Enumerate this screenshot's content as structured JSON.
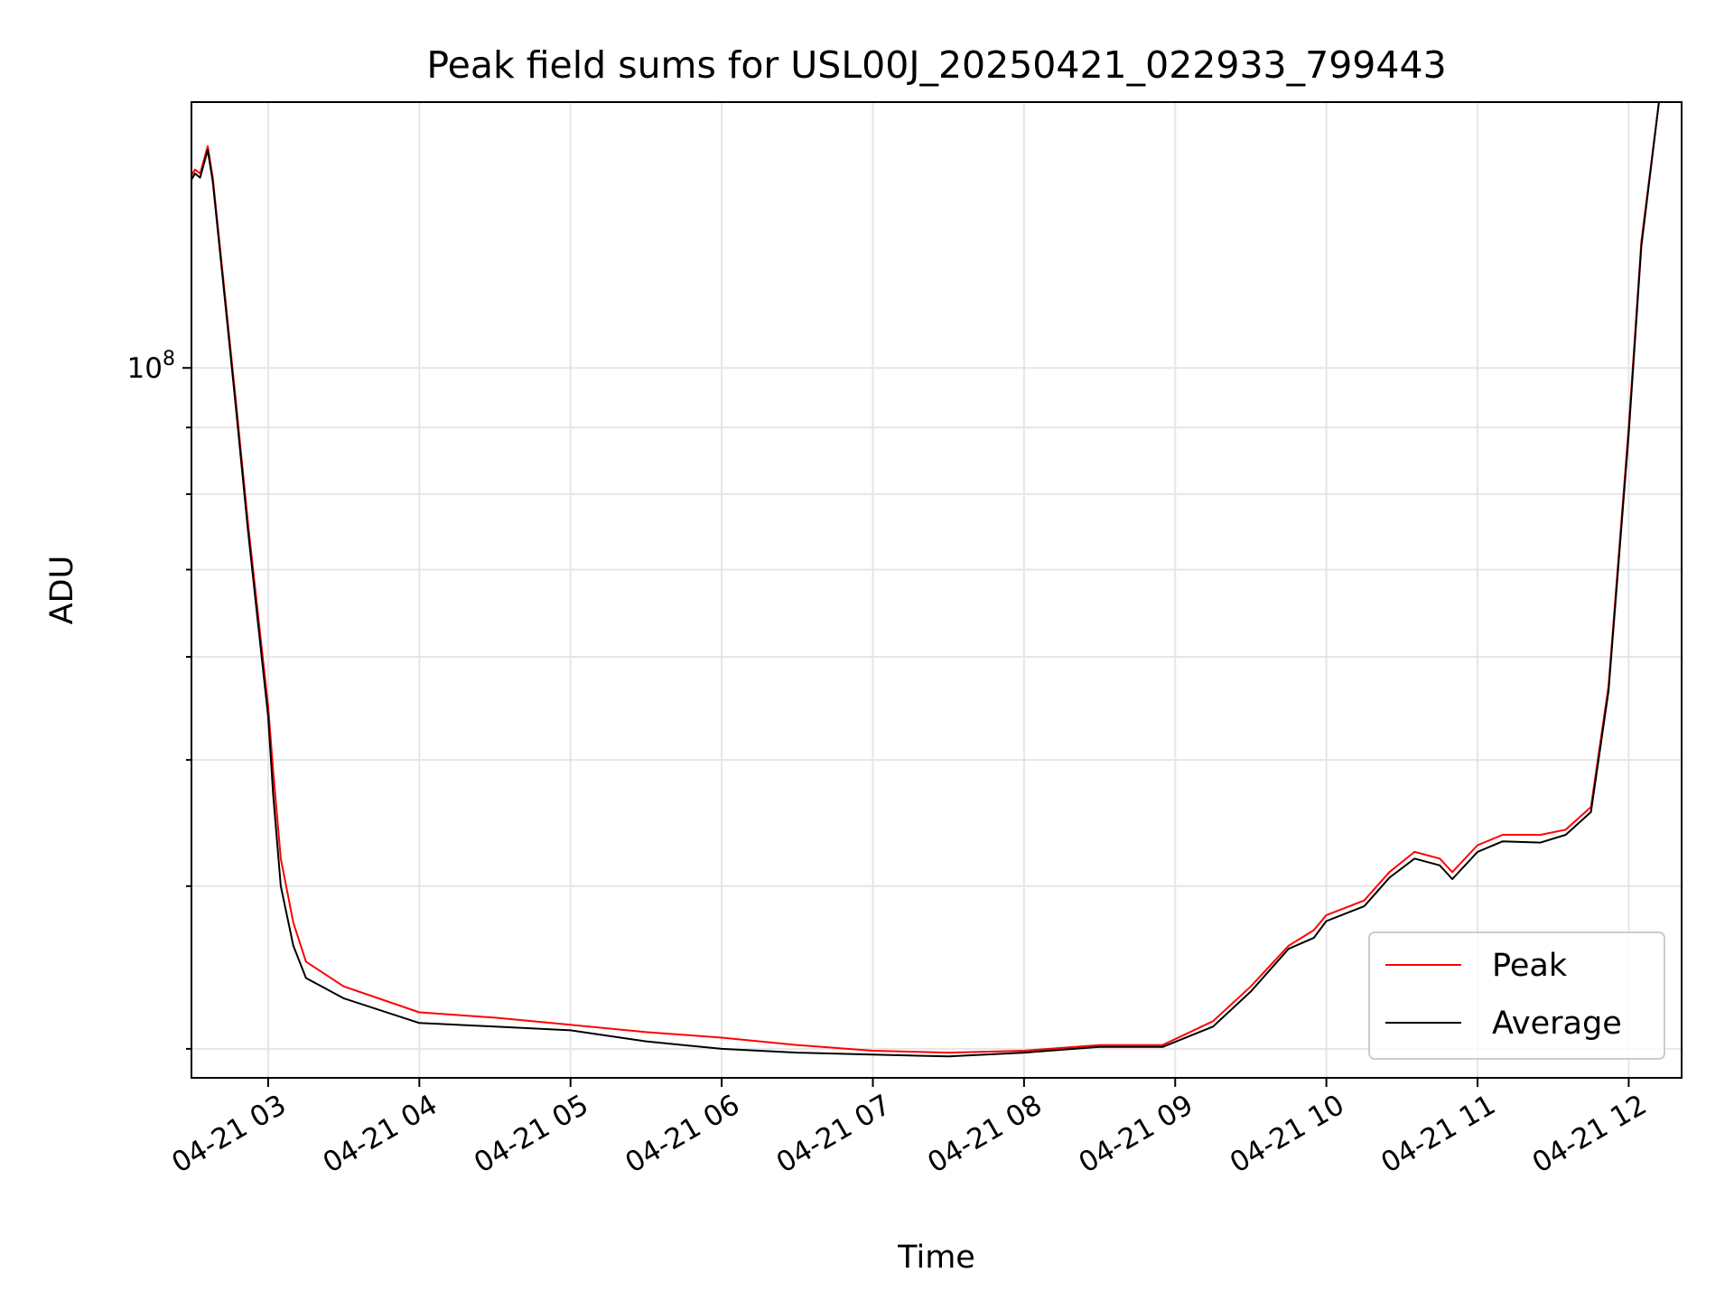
{
  "chart_data": {
    "type": "line",
    "title": "Peak field sums for USL00J_20250421_022933_799443",
    "xlabel": "Time",
    "ylabel": "ADU",
    "y_scale": "log",
    "y_tick_labels": [
      {
        "base": "10",
        "exp": "8",
        "value": 100000000
      }
    ],
    "ylim": [
      28500000,
      160000000
    ],
    "xlim": [
      "2025-04-21 02:29:33",
      "2025-04-21 12:21:00"
    ],
    "x_ticks": [
      "2025-04-21 03:00",
      "2025-04-21 04:00",
      "2025-04-21 05:00",
      "2025-04-21 06:00",
      "2025-04-21 07:00",
      "2025-04-21 08:00",
      "2025-04-21 09:00",
      "2025-04-21 10:00",
      "2025-04-21 11:00",
      "2025-04-21 12:00"
    ],
    "x_tick_labels": [
      "04-21 03",
      "04-21 04",
      "04-21 05",
      "04-21 06",
      "04-21 07",
      "04-21 08",
      "04-21 09",
      "04-21 10",
      "04-21 11",
      "04-21 12"
    ],
    "grid": true,
    "legend": {
      "position": "lower-right"
    },
    "series": [
      {
        "name": "Peak",
        "color": "#ff0000",
        "x": [
          "2025-04-21 02:29",
          "2025-04-21 02:31",
          "2025-04-21 02:33",
          "2025-04-21 02:36",
          "2025-04-21 02:38",
          "2025-04-21 02:42",
          "2025-04-21 02:47",
          "2025-04-21 02:52",
          "2025-04-21 02:57",
          "2025-04-21 03:00",
          "2025-04-21 03:02",
          "2025-04-21 03:05",
          "2025-04-21 03:10",
          "2025-04-21 03:15",
          "2025-04-21 03:30",
          "2025-04-21 04:00",
          "2025-04-21 04:30",
          "2025-04-21 05:00",
          "2025-04-21 05:30",
          "2025-04-21 06:00",
          "2025-04-21 06:30",
          "2025-04-21 07:00",
          "2025-04-21 07:30",
          "2025-04-21 08:00",
          "2025-04-21 08:30",
          "2025-04-21 08:55",
          "2025-04-21 09:15",
          "2025-04-21 09:30",
          "2025-04-21 09:45",
          "2025-04-21 09:55",
          "2025-04-21 10:00",
          "2025-04-21 10:15",
          "2025-04-21 10:25",
          "2025-04-21 10:35",
          "2025-04-21 10:45",
          "2025-04-21 10:50",
          "2025-04-21 11:00",
          "2025-04-21 11:10",
          "2025-04-21 11:25",
          "2025-04-21 11:35",
          "2025-04-21 11:45",
          "2025-04-21 11:52",
          "2025-04-21 12:00",
          "2025-04-21 12:05",
          "2025-04-21 12:12"
        ],
        "values": [
          140000000,
          142000000,
          141000000,
          148000000,
          140000000,
          118000000,
          95000000,
          76000000,
          62000000,
          55000000,
          49000000,
          42000000,
          37500000,
          35000000,
          33500000,
          32000000,
          31700000,
          31300000,
          30900000,
          30600000,
          30200000,
          29900000,
          29800000,
          29900000,
          30200000,
          30200000,
          31500000,
          33500000,
          36000000,
          37000000,
          38000000,
          39000000,
          41000000,
          42500000,
          42000000,
          41000000,
          43000000,
          43800000,
          43800000,
          44200000,
          46000000,
          57000000,
          90000000,
          125000000,
          160000000
        ]
      },
      {
        "name": "Average",
        "color": "#000000",
        "x": [
          "2025-04-21 02:29",
          "2025-04-21 02:31",
          "2025-04-21 02:33",
          "2025-04-21 02:36",
          "2025-04-21 02:38",
          "2025-04-21 02:42",
          "2025-04-21 02:47",
          "2025-04-21 02:52",
          "2025-04-21 02:57",
          "2025-04-21 03:00",
          "2025-04-21 03:02",
          "2025-04-21 03:05",
          "2025-04-21 03:10",
          "2025-04-21 03:15",
          "2025-04-21 03:30",
          "2025-04-21 04:00",
          "2025-04-21 04:30",
          "2025-04-21 05:00",
          "2025-04-21 05:30",
          "2025-04-21 06:00",
          "2025-04-21 06:30",
          "2025-04-21 07:00",
          "2025-04-21 07:30",
          "2025-04-21 08:00",
          "2025-04-21 08:30",
          "2025-04-21 08:55",
          "2025-04-21 09:15",
          "2025-04-21 09:30",
          "2025-04-21 09:45",
          "2025-04-21 09:55",
          "2025-04-21 10:00",
          "2025-04-21 10:15",
          "2025-04-21 10:25",
          "2025-04-21 10:35",
          "2025-04-21 10:45",
          "2025-04-21 10:50",
          "2025-04-21 11:00",
          "2025-04-21 11:10",
          "2025-04-21 11:25",
          "2025-04-21 11:35",
          "2025-04-21 11:45",
          "2025-04-21 11:52",
          "2025-04-21 12:00",
          "2025-04-21 12:05",
          "2025-04-21 12:12"
        ],
        "values": [
          139000000,
          141000000,
          140000000,
          147000000,
          139000000,
          117000000,
          94000000,
          75000000,
          61000000,
          54000000,
          47000000,
          40000000,
          36000000,
          34000000,
          32800000,
          31400000,
          31200000,
          31000000,
          30400000,
          30000000,
          29800000,
          29700000,
          29600000,
          29800000,
          30100000,
          30100000,
          31200000,
          33200000,
          35800000,
          36500000,
          37600000,
          38600000,
          40600000,
          42000000,
          41500000,
          40500000,
          42500000,
          43300000,
          43200000,
          43800000,
          45600000,
          56500000,
          89000000,
          124000000,
          160000000
        ]
      }
    ]
  }
}
